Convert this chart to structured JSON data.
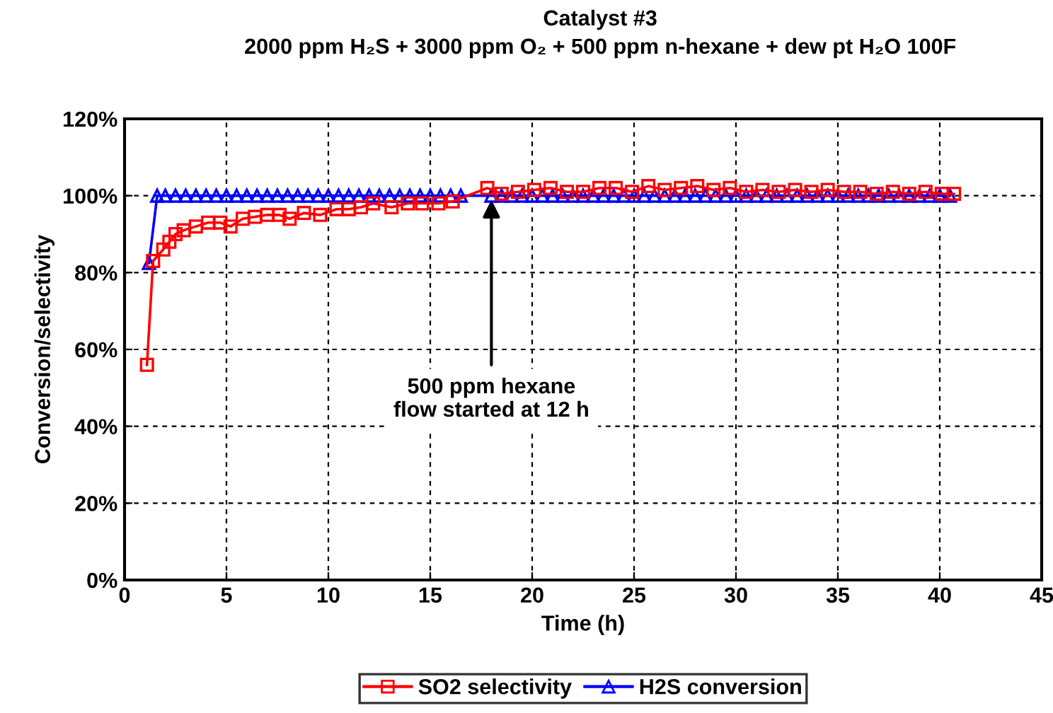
{
  "chart_data": {
    "type": "line",
    "title": "Catalyst #3",
    "subtitle": "2000 ppm H₂S + 3000 ppm O₂ + 500 ppm n-hexane + dew pt H₂O 100F",
    "xlabel": "Time (h)",
    "ylabel": "Conversion/selectivity",
    "xlim": [
      0,
      45
    ],
    "xticks": [
      0,
      5,
      10,
      15,
      20,
      25,
      30,
      35,
      40,
      45
    ],
    "ylim": [
      0,
      120
    ],
    "yticks": [
      {
        "value": 0,
        "label": "0%"
      },
      {
        "value": 20,
        "label": "20%"
      },
      {
        "value": 40,
        "label": "40%"
      },
      {
        "value": 60,
        "label": "60%"
      },
      {
        "value": 80,
        "label": "80%"
      },
      {
        "value": 100,
        "label": "100%"
      },
      {
        "value": 120,
        "label": "120%"
      }
    ],
    "grid": true,
    "legend": "bottom",
    "line_style": "solid",
    "annotations": [
      {
        "text": "500 ppm hexane\nflow started at 12 h",
        "x": 18,
        "y": 100
      }
    ],
    "series": [
      {
        "name": "SO2 selectivity",
        "color": "#ff0000",
        "marker": "square",
        "x": [
          1.1,
          1.4,
          1.9,
          2.2,
          2.5,
          2.9,
          3.5,
          4.1,
          4.7,
          5.2,
          5.8,
          6.4,
          7.0,
          7.6,
          8.1,
          8.8,
          9.6,
          10.4,
          11.0,
          11.6,
          12.2,
          13.1,
          13.9,
          14.6,
          15.4,
          16.1,
          17.8,
          18.5,
          19.3,
          20.1,
          20.9,
          21.7,
          22.5,
          23.3,
          24.1,
          24.9,
          25.7,
          26.5,
          27.3,
          28.1,
          28.9,
          29.7,
          30.5,
          31.3,
          32.1,
          32.9,
          33.7,
          34.5,
          35.3,
          36.1,
          36.9,
          37.7,
          38.5,
          39.3,
          40.1,
          40.7
        ],
        "values": [
          56,
          83,
          86,
          88,
          90,
          91,
          92,
          93,
          93,
          92,
          94,
          94.5,
          95,
          95,
          94,
          95.5,
          95,
          96.5,
          96.5,
          97,
          98,
          97,
          98,
          98,
          98,
          98.5,
          102,
          100.5,
          101,
          101.5,
          102,
          101,
          101,
          102,
          102,
          101,
          102.5,
          101.5,
          102,
          102.5,
          101.5,
          102,
          101,
          101.5,
          101,
          101.5,
          101,
          101.5,
          101,
          101,
          100.5,
          101,
          100.5,
          101,
          100.5,
          100.5
        ]
      },
      {
        "name": "H2S conversion",
        "color": "#0000ff",
        "marker": "triangle",
        "x": [
          1.2,
          1.6,
          2.0,
          2.5,
          3.0,
          3.5,
          4.0,
          4.5,
          5.0,
          5.5,
          6.0,
          6.5,
          7.0,
          7.5,
          8.0,
          8.5,
          9.0,
          9.5,
          10.0,
          10.5,
          11.0,
          11.5,
          12.0,
          12.5,
          13.0,
          13.5,
          14.0,
          14.5,
          15.0,
          15.5,
          16.0,
          16.5,
          18.0,
          18.5,
          19.0,
          19.5,
          20.0,
          20.5,
          21.0,
          21.5,
          22.0,
          22.5,
          23.0,
          23.5,
          24.0,
          24.5,
          25.0,
          25.5,
          26.0,
          26.5,
          27.0,
          27.5,
          28.0,
          28.5,
          29.0,
          29.5,
          30.0,
          30.5,
          31.0,
          31.5,
          32.0,
          32.5,
          33.0,
          33.5,
          34.0,
          34.5,
          35.0,
          35.5,
          36.0,
          36.5,
          37.0,
          37.5,
          38.0,
          38.5,
          39.0,
          39.5,
          40.0,
          40.5
        ],
        "values": [
          82.5,
          100,
          100,
          100,
          100,
          100,
          100,
          100,
          100,
          100,
          100,
          100,
          100,
          100,
          100,
          100,
          100,
          100,
          100,
          100,
          100,
          100,
          100,
          100,
          100,
          100,
          100,
          100,
          100,
          100,
          100,
          100,
          100,
          100,
          100,
          100,
          100,
          100,
          100,
          100,
          100,
          100,
          100,
          100,
          100,
          100,
          100,
          100,
          100,
          100,
          100,
          100,
          100,
          100,
          100,
          100,
          100,
          100,
          100,
          100,
          100,
          100,
          100,
          100,
          100,
          100,
          100,
          100,
          100,
          100,
          100,
          100,
          100,
          100,
          100,
          100,
          100,
          100
        ]
      }
    ]
  }
}
